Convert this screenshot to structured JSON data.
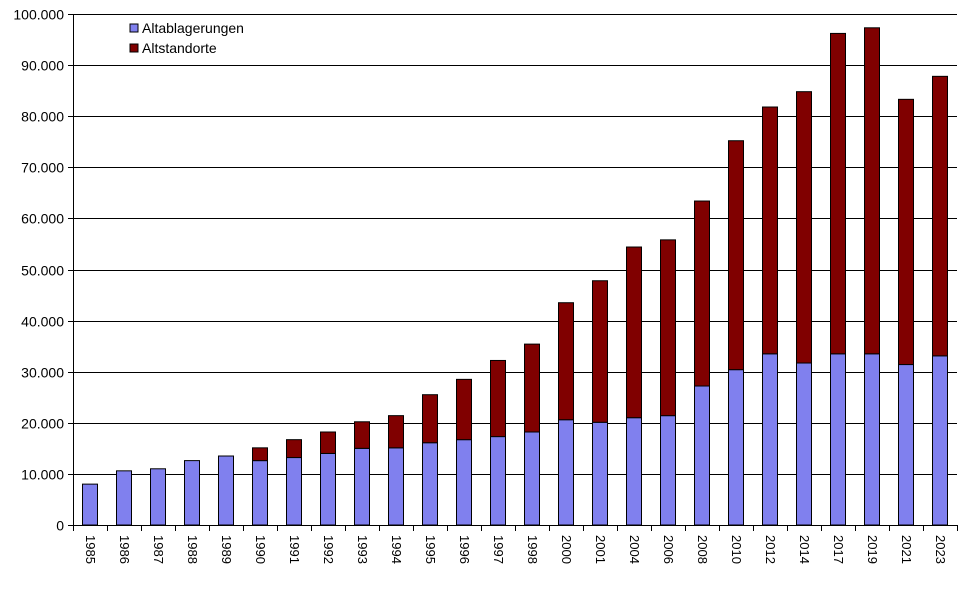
{
  "chart_data": {
    "type": "bar",
    "stacked": true,
    "title": "",
    "xlabel": "",
    "ylabel": "",
    "ylim": [
      0,
      100000
    ],
    "yticks": [
      0,
      10000,
      20000,
      30000,
      40000,
      50000,
      60000,
      70000,
      80000,
      90000,
      100000
    ],
    "ytick_labels": [
      "0",
      "10.000",
      "20.000",
      "30.000",
      "40.000",
      "50.000",
      "60.000",
      "70.000",
      "80.000",
      "90.000",
      "100.000"
    ],
    "grid": "horizontal",
    "legend_position": "top-left",
    "categories": [
      "1985",
      "1986",
      "1987",
      "1988",
      "1989",
      "1990",
      "1991",
      "1992",
      "1993",
      "1994",
      "1995",
      "1996",
      "1997",
      "1998",
      "2000",
      "2001",
      "2004",
      "2006",
      "2008",
      "2010",
      "2012",
      "2014",
      "2017",
      "2019",
      "2021",
      "2023"
    ],
    "series": [
      {
        "name": "Altablagerungen",
        "color": "#8080ee",
        "values": [
          8000,
          10600,
          11000,
          12600,
          13500,
          12600,
          13200,
          14000,
          15000,
          15100,
          16100,
          16700,
          17300,
          18200,
          20600,
          20100,
          21000,
          21400,
          27200,
          30400,
          33500,
          31700,
          33500,
          33500,
          31400,
          33100
        ]
      },
      {
        "name": "Altstandorte",
        "color": "#800000",
        "values": [
          0,
          0,
          0,
          0,
          0,
          2500,
          3500,
          4200,
          5200,
          6300,
          9400,
          11800,
          14900,
          17200,
          22900,
          27700,
          33400,
          34400,
          36200,
          44800,
          48300,
          53100,
          62700,
          63800,
          51900,
          54700
        ]
      }
    ]
  }
}
